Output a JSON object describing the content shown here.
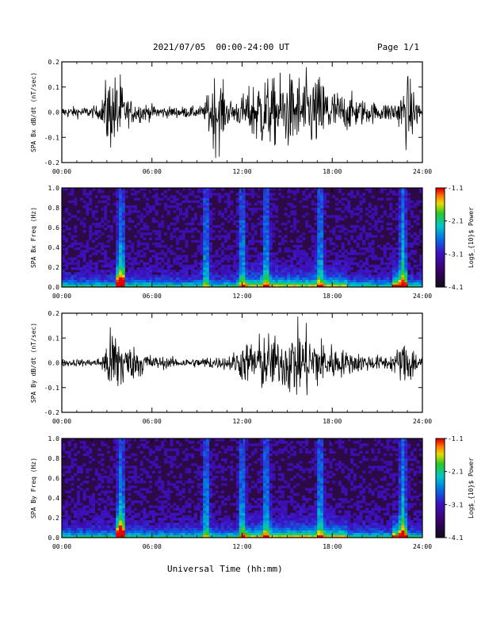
{
  "header": {
    "title": "2021/07/05  00:00-24:00 UT",
    "page": "Page 1/1"
  },
  "chart_data": [
    {
      "type": "line",
      "ylabel": "SPA Bx dB/dt (nT/sec)",
      "xlim": [
        0,
        24
      ],
      "ylim": [
        -0.2,
        0.2
      ],
      "yticks": [
        "-0.2",
        "-0.1",
        "0.0",
        "0.1",
        "0.2"
      ],
      "xticks": [
        "00:00",
        "06:00",
        "12:00",
        "18:00",
        "24:00"
      ],
      "series": [
        {
          "x": [
            0,
            1,
            2,
            2.6,
            3,
            3.3,
            3.6,
            3.9,
            4.2,
            4.8,
            5.5,
            6,
            7,
            8,
            9,
            9.5,
            10,
            10.5,
            11,
            11.5,
            12,
            12.5,
            13,
            13.5,
            14,
            14.5,
            15,
            15.5,
            16,
            16.5,
            17,
            17.5,
            18,
            18.5,
            19,
            19.5,
            20,
            21,
            21.5,
            22,
            22.5,
            23,
            23.5,
            24
          ],
          "envelope": [
            0.03,
            0.03,
            0.03,
            0.04,
            0.2,
            0.2,
            0.2,
            0.2,
            0.08,
            0.06,
            0.05,
            0.04,
            0.03,
            0.03,
            0.03,
            0.04,
            0.2,
            0.2,
            0.08,
            0.06,
            0.09,
            0.13,
            0.2,
            0.2,
            0.17,
            0.2,
            0.2,
            0.2,
            0.2,
            0.2,
            0.2,
            0.18,
            0.13,
            0.11,
            0.1,
            0.09,
            0.07,
            0.05,
            0.05,
            0.06,
            0.08,
            0.2,
            0.1,
            0.03
          ]
        }
      ]
    },
    {
      "type": "heatmap",
      "ylabel": "SPA Bx Freq (Hz)",
      "xlim": [
        0,
        24
      ],
      "ylim": [
        0,
        1.0
      ],
      "yticks": [
        "0.0",
        "0.2",
        "0.4",
        "0.6",
        "0.8",
        "1.0"
      ],
      "xticks": [
        "00:00",
        "06:00",
        "12:00",
        "18:00",
        "24:00"
      ],
      "colorbar": {
        "label": "Log$_{10}$ Power",
        "ticks": [
          "-1.1",
          "-2.1",
          "-3.1",
          "-4.1"
        ],
        "range": [
          -4.1,
          -1.1
        ]
      },
      "bright_lines_hours": [
        3.95,
        9.6,
        12.0,
        13.6,
        17.2,
        22.7
      ]
    },
    {
      "type": "line",
      "ylabel": "SPA By dB/dt (nT/sec)",
      "xlim": [
        0,
        24
      ],
      "ylim": [
        -0.2,
        0.2
      ],
      "yticks": [
        "-0.2",
        "-0.1",
        "0.0",
        "0.1",
        "0.2"
      ],
      "xticks": [
        "00:00",
        "06:00",
        "12:00",
        "18:00",
        "24:00"
      ],
      "series": [
        {
          "x": [
            0,
            1,
            2,
            2.6,
            3,
            3.3,
            3.6,
            3.9,
            4.2,
            4.8,
            5.5,
            6,
            7,
            8,
            9,
            9.5,
            10,
            10.5,
            11,
            11.5,
            12,
            12.5,
            13,
            13.5,
            14,
            14.5,
            15,
            15.5,
            16,
            16.5,
            17,
            17.5,
            18,
            18.5,
            19,
            19.5,
            20,
            21,
            21.5,
            22,
            22.5,
            23,
            23.5,
            24
          ],
          "envelope": [
            0.02,
            0.02,
            0.02,
            0.03,
            0.12,
            0.2,
            0.2,
            0.2,
            0.1,
            0.09,
            0.07,
            0.04,
            0.03,
            0.025,
            0.025,
            0.03,
            0.04,
            0.03,
            0.04,
            0.06,
            0.1,
            0.12,
            0.14,
            0.17,
            0.15,
            0.12,
            0.17,
            0.2,
            0.19,
            0.19,
            0.15,
            0.12,
            0.1,
            0.08,
            0.06,
            0.06,
            0.05,
            0.04,
            0.04,
            0.05,
            0.09,
            0.14,
            0.08,
            0.03
          ]
        }
      ]
    },
    {
      "type": "heatmap",
      "ylabel": "SPA By Freq (Hz)",
      "xlim": [
        0,
        24
      ],
      "ylim": [
        0,
        1.0
      ],
      "yticks": [
        "0.0",
        "0.2",
        "0.4",
        "0.6",
        "0.8",
        "1.0"
      ],
      "xticks": [
        "00:00",
        "06:00",
        "12:00",
        "18:00",
        "24:00"
      ],
      "colorbar": {
        "label": "Log$_{10}$ Power",
        "ticks": [
          "-1.1",
          "-2.1",
          "-3.1",
          "-4.1"
        ],
        "range": [
          -4.1,
          -1.1
        ]
      },
      "bright_lines_hours": [
        3.95,
        9.6,
        12.0,
        13.6,
        17.2,
        22.7
      ]
    }
  ],
  "xlabel": "Universal Time (hh:mm)"
}
